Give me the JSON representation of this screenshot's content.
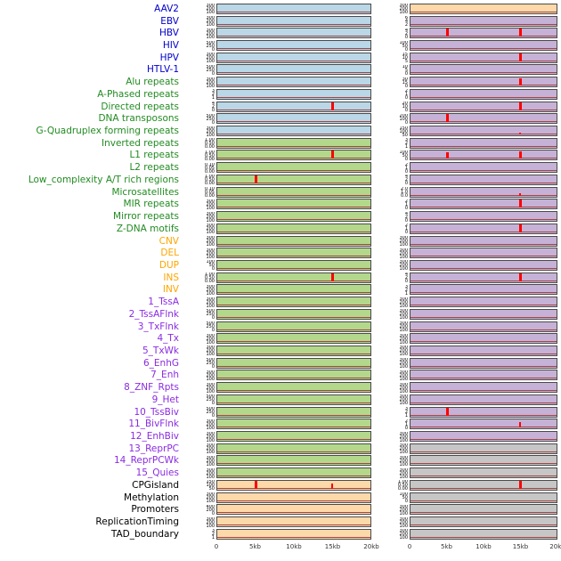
{
  "colors": {
    "label": {
      "virus": "#0000cd",
      "repeat": "#228b22",
      "sv": "#ffa500",
      "chromatin": "#8a2be2",
      "other": "#000000"
    },
    "panel": {
      "blue": "#b9d7e6",
      "green": "#b3d88c",
      "peach": "#fdd9a9",
      "purple": "#c6b2d6",
      "gray": "#c6c6c6"
    },
    "spike": "#ff0000",
    "baseline": "#a04545",
    "panel_border": "#4a4a4a",
    "axis_text": "#333333"
  },
  "chart_data": {
    "type": "line",
    "description": "44 genomic feature density tracks in two panel columns; red signal trace hugs zero with sharp peaks at ~5kb and ~15kb in some tracks",
    "x_range_kb": [
      0,
      20
    ],
    "x_ticks": [
      "0",
      "5kb",
      "10kb",
      "15kb",
      "20kb"
    ],
    "columns": [
      "left",
      "right"
    ],
    "tick_sets": {
      "A": [
        "300",
        "200",
        "100",
        "0"
      ],
      "B": [
        "500",
        "250",
        "0"
      ],
      "C": [
        "1.00",
        "0.50",
        "0.00"
      ],
      "D": [
        "4",
        "2",
        "0"
      ],
      "E": [
        "100",
        "50",
        "0"
      ],
      "F": [
        "2",
        "1",
        "0"
      ],
      "G": [
        "150",
        "100",
        "50",
        "0"
      ],
      "H": [
        "3",
        "2",
        "1",
        "0"
      ],
      "I": [
        "20",
        "10",
        "0"
      ],
      "J": [
        "0.10",
        "0.05",
        "0.00"
      ],
      "K": [
        "30",
        "15",
        "0"
      ],
      "L": [
        "6",
        "4",
        "2",
        "0"
      ],
      "M": [
        "15",
        "10",
        "5",
        "0"
      ],
      "N": [
        "200",
        "100",
        "0"
      ],
      "O": [
        "2.0",
        "1.0",
        "0.0"
      ],
      "Q": [
        "400",
        "200",
        "0"
      ],
      "R": [
        "10",
        "5",
        "0"
      ]
    },
    "rows": [
      {
        "label": "AAV2",
        "group": "virus",
        "left": {
          "bg": "blue",
          "yt": "A",
          "peaks": []
        },
        "right": {
          "bg": "peach",
          "yt": "A",
          "peaks": []
        }
      },
      {
        "label": "EBV",
        "group": "virus",
        "left": {
          "bg": "blue",
          "yt": "A",
          "peaks": []
        },
        "right": {
          "bg": "purple",
          "yt": "L",
          "peaks": []
        }
      },
      {
        "label": "HBV",
        "group": "virus",
        "left": {
          "bg": "blue",
          "yt": "A",
          "peaks": []
        },
        "right": {
          "bg": "purple",
          "yt": "D",
          "peaks": [
            {
              "x": 5,
              "h": 0.95
            },
            {
              "x": 15,
              "h": 0.95
            }
          ]
        }
      },
      {
        "label": "HIV",
        "group": "virus",
        "left": {
          "bg": "blue",
          "yt": "B",
          "peaks": []
        },
        "right": {
          "bg": "purple",
          "yt": "E",
          "peaks": []
        }
      },
      {
        "label": "HPV",
        "group": "virus",
        "left": {
          "bg": "blue",
          "yt": "A",
          "peaks": []
        },
        "right": {
          "bg": "purple",
          "yt": "M",
          "peaks": [
            {
              "x": 15,
              "h": 1.0
            }
          ]
        }
      },
      {
        "label": "HTLV-1",
        "group": "virus",
        "left": {
          "bg": "blue",
          "yt": "B",
          "peaks": []
        },
        "right": {
          "bg": "purple",
          "yt": "R",
          "peaks": []
        }
      },
      {
        "label": "Alu repeats",
        "group": "repeat",
        "left": {
          "bg": "blue",
          "yt": "A",
          "peaks": []
        },
        "right": {
          "bg": "purple",
          "yt": "K",
          "peaks": [
            {
              "x": 15,
              "h": 0.85
            }
          ]
        }
      },
      {
        "label": "A-Phased repeats",
        "group": "repeat",
        "left": {
          "bg": "blue",
          "yt": "H",
          "peaks": []
        },
        "right": {
          "bg": "purple",
          "yt": "F",
          "peaks": []
        }
      },
      {
        "label": "Directed repeats",
        "group": "repeat",
        "left": {
          "bg": "blue",
          "yt": "D",
          "peaks": [
            {
              "x": 15,
              "h": 1.0
            }
          ]
        },
        "right": {
          "bg": "purple",
          "yt": "I",
          "peaks": [
            {
              "x": 15,
              "h": 0.9
            }
          ]
        }
      },
      {
        "label": "DNA transposons",
        "group": "repeat",
        "left": {
          "bg": "blue",
          "yt": "B",
          "peaks": []
        },
        "right": {
          "bg": "purple",
          "yt": "N",
          "peaks": [
            {
              "x": 5,
              "h": 0.95
            }
          ]
        }
      },
      {
        "label": "G-Quadruplex forming repeats",
        "group": "repeat",
        "left": {
          "bg": "blue",
          "yt": "A",
          "peaks": []
        },
        "right": {
          "bg": "purple",
          "yt": "G",
          "peaks": [
            {
              "x": 15,
              "h": 0.25
            }
          ]
        }
      },
      {
        "label": "Inverted repeats",
        "group": "repeat",
        "left": {
          "bg": "green",
          "yt": "C",
          "peaks": []
        },
        "right": {
          "bg": "purple",
          "yt": "H",
          "peaks": []
        }
      },
      {
        "label": "L1 repeats",
        "group": "repeat",
        "left": {
          "bg": "green",
          "yt": "C",
          "peaks": [
            {
              "x": 15,
              "h": 0.95
            }
          ]
        },
        "right": {
          "bg": "purple",
          "yt": "E",
          "peaks": [
            {
              "x": 5,
              "h": 0.75
            },
            {
              "x": 15,
              "h": 0.85
            }
          ]
        }
      },
      {
        "label": "L2 repeats",
        "group": "repeat",
        "left": {
          "bg": "green",
          "yt": "J",
          "peaks": []
        },
        "right": {
          "bg": "purple",
          "yt": "F",
          "peaks": []
        }
      },
      {
        "label": "Low_complexity A/T rich regions",
        "group": "repeat",
        "left": {
          "bg": "green",
          "yt": "C",
          "peaks": [
            {
              "x": 5,
              "h": 1.0
            }
          ]
        },
        "right": {
          "bg": "purple",
          "yt": "D",
          "peaks": []
        }
      },
      {
        "label": "Microsatellites",
        "group": "repeat",
        "left": {
          "bg": "green",
          "yt": "J",
          "peaks": []
        },
        "right": {
          "bg": "purple",
          "yt": "O",
          "peaks": [
            {
              "x": 15,
              "h": 0.3
            }
          ]
        }
      },
      {
        "label": "MIR repeats",
        "group": "repeat",
        "left": {
          "bg": "green",
          "yt": "A",
          "peaks": []
        },
        "right": {
          "bg": "purple",
          "yt": "F",
          "peaks": [
            {
              "x": 15,
              "h": 0.95
            }
          ]
        }
      },
      {
        "label": "Mirror repeats",
        "group": "repeat",
        "left": {
          "bg": "green",
          "yt": "A",
          "peaks": []
        },
        "right": {
          "bg": "purple",
          "yt": "D",
          "peaks": []
        }
      },
      {
        "label": "Z-DNA motifs",
        "group": "repeat",
        "left": {
          "bg": "green",
          "yt": "A",
          "peaks": []
        },
        "right": {
          "bg": "purple",
          "yt": "F",
          "peaks": [
            {
              "x": 15,
              "h": 0.9
            }
          ]
        }
      },
      {
        "label": "CNV",
        "group": "sv",
        "left": {
          "bg": "green",
          "yt": "A",
          "peaks": []
        },
        "right": {
          "bg": "purple",
          "yt": "A",
          "peaks": []
        }
      },
      {
        "label": "DEL",
        "group": "sv",
        "left": {
          "bg": "green",
          "yt": "A",
          "peaks": []
        },
        "right": {
          "bg": "purple",
          "yt": "A",
          "peaks": []
        }
      },
      {
        "label": "DUP",
        "group": "sv",
        "left": {
          "bg": "green",
          "yt": "E",
          "peaks": []
        },
        "right": {
          "bg": "purple",
          "yt": "A",
          "peaks": []
        }
      },
      {
        "label": "INS",
        "group": "sv",
        "left": {
          "bg": "green",
          "yt": "C",
          "peaks": [
            {
              "x": 15,
              "h": 1.0
            }
          ]
        },
        "right": {
          "bg": "purple",
          "yt": "D",
          "peaks": [
            {
              "x": 15,
              "h": 0.85
            }
          ]
        }
      },
      {
        "label": "INV",
        "group": "sv",
        "left": {
          "bg": "green",
          "yt": "A",
          "peaks": []
        },
        "right": {
          "bg": "purple",
          "yt": "H",
          "peaks": []
        }
      },
      {
        "label": "1_TssA",
        "group": "chromatin",
        "left": {
          "bg": "green",
          "yt": "A",
          "peaks": []
        },
        "right": {
          "bg": "purple",
          "yt": "A",
          "peaks": []
        }
      },
      {
        "label": "2_TssAFlnk",
        "group": "chromatin",
        "left": {
          "bg": "green",
          "yt": "B",
          "peaks": []
        },
        "right": {
          "bg": "purple",
          "yt": "A",
          "peaks": []
        }
      },
      {
        "label": "3_TxFlnk",
        "group": "chromatin",
        "left": {
          "bg": "green",
          "yt": "B",
          "peaks": []
        },
        "right": {
          "bg": "purple",
          "yt": "A",
          "peaks": []
        }
      },
      {
        "label": "4_Tx",
        "group": "chromatin",
        "left": {
          "bg": "green",
          "yt": "A",
          "peaks": []
        },
        "right": {
          "bg": "purple",
          "yt": "A",
          "peaks": []
        }
      },
      {
        "label": "5_TxWk",
        "group": "chromatin",
        "left": {
          "bg": "green",
          "yt": "A",
          "peaks": []
        },
        "right": {
          "bg": "purple",
          "yt": "A",
          "peaks": []
        }
      },
      {
        "label": "6_EnhG",
        "group": "chromatin",
        "left": {
          "bg": "green",
          "yt": "B",
          "peaks": []
        },
        "right": {
          "bg": "purple",
          "yt": "A",
          "peaks": []
        }
      },
      {
        "label": "7_Enh",
        "group": "chromatin",
        "left": {
          "bg": "green",
          "yt": "A",
          "peaks": []
        },
        "right": {
          "bg": "purple",
          "yt": "A",
          "peaks": []
        }
      },
      {
        "label": "8_ZNF_Rpts",
        "group": "chromatin",
        "left": {
          "bg": "green",
          "yt": "A",
          "peaks": []
        },
        "right": {
          "bg": "purple",
          "yt": "A",
          "peaks": []
        }
      },
      {
        "label": "9_Het",
        "group": "chromatin",
        "left": {
          "bg": "green",
          "yt": "B",
          "peaks": []
        },
        "right": {
          "bg": "purple",
          "yt": "A",
          "peaks": []
        }
      },
      {
        "label": "10_TssBiv",
        "group": "chromatin",
        "left": {
          "bg": "green",
          "yt": "B",
          "peaks": []
        },
        "right": {
          "bg": "purple",
          "yt": "H",
          "peaks": [
            {
              "x": 5,
              "h": 0.95
            }
          ]
        }
      },
      {
        "label": "11_BivFlnk",
        "group": "chromatin",
        "left": {
          "bg": "green",
          "yt": "A",
          "peaks": []
        },
        "right": {
          "bg": "purple",
          "yt": "F",
          "peaks": [
            {
              "x": 15,
              "h": 0.6
            }
          ]
        }
      },
      {
        "label": "12_EnhBiv",
        "group": "chromatin",
        "left": {
          "bg": "green",
          "yt": "A",
          "peaks": []
        },
        "right": {
          "bg": "purple",
          "yt": "A",
          "peaks": []
        }
      },
      {
        "label": "13_ReprPC",
        "group": "chromatin",
        "left": {
          "bg": "green",
          "yt": "A",
          "peaks": []
        },
        "right": {
          "bg": "gray",
          "yt": "A",
          "peaks": []
        }
      },
      {
        "label": "14_ReprPCWk",
        "group": "chromatin",
        "left": {
          "bg": "green",
          "yt": "A",
          "peaks": []
        },
        "right": {
          "bg": "gray",
          "yt": "A",
          "peaks": []
        }
      },
      {
        "label": "15_Quies",
        "group": "chromatin",
        "left": {
          "bg": "green",
          "yt": "A",
          "peaks": []
        },
        "right": {
          "bg": "gray",
          "yt": "A",
          "peaks": []
        }
      },
      {
        "label": "CPGisland",
        "group": "other",
        "left": {
          "bg": "peach",
          "yt": "G",
          "peaks": [
            {
              "x": 5,
              "h": 1.0
            },
            {
              "x": 15,
              "h": 0.55
            }
          ]
        },
        "right": {
          "bg": "gray",
          "yt": "C",
          "peaks": [
            {
              "x": 15,
              "h": 0.9
            }
          ]
        }
      },
      {
        "label": "Methylation",
        "group": "other",
        "left": {
          "bg": "peach",
          "yt": "A",
          "peaks": []
        },
        "right": {
          "bg": "gray",
          "yt": "E",
          "peaks": []
        }
      },
      {
        "label": "Promoters",
        "group": "other",
        "left": {
          "bg": "peach",
          "yt": "Q",
          "peaks": []
        },
        "right": {
          "bg": "gray",
          "yt": "A",
          "peaks": []
        }
      },
      {
        "label": "ReplicationTiming",
        "group": "other",
        "left": {
          "bg": "peach",
          "yt": "A",
          "peaks": []
        },
        "right": {
          "bg": "gray",
          "yt": "A",
          "peaks": []
        }
      },
      {
        "label": "TAD_boundary",
        "group": "other",
        "left": {
          "bg": "peach",
          "yt": "H",
          "peaks": []
        },
        "right": {
          "bg": "gray",
          "yt": "A",
          "peaks": []
        }
      }
    ]
  }
}
